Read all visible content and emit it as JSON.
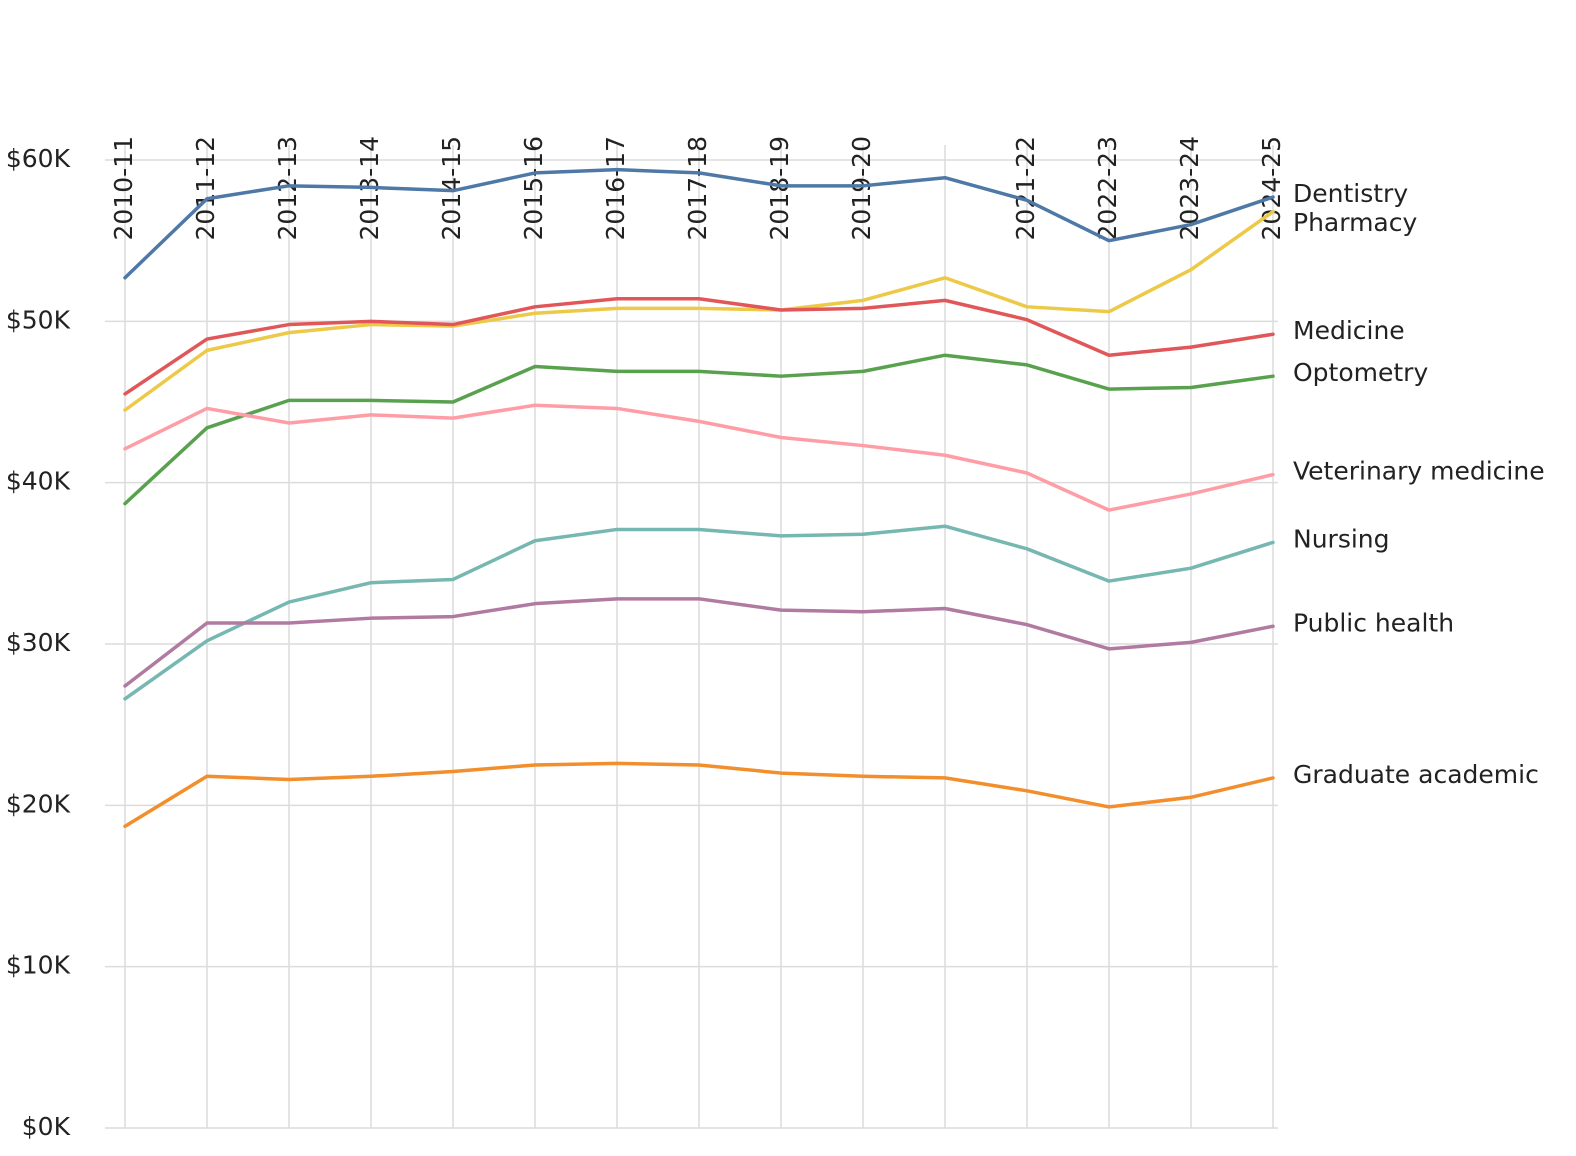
{
  "chart_data": {
    "type": "line",
    "categories": [
      "2010-11",
      "2011-12",
      "2012-13",
      "2013-14",
      "2014-15",
      "2015-16",
      "2016-17",
      "2017-18",
      "2018-19",
      "2019-20",
      null,
      "2021-22",
      "2022-23",
      "2023-24",
      "2024-25"
    ],
    "ylim": [
      0,
      60000
    ],
    "yticks": [
      {
        "value": 0,
        "label": "$0K"
      },
      {
        "value": 10000,
        "label": "$10K"
      },
      {
        "value": 20000,
        "label": "$20K"
      },
      {
        "value": 30000,
        "label": "$30K"
      },
      {
        "value": 40000,
        "label": "$40K"
      },
      {
        "value": 50000,
        "label": "$50K"
      },
      {
        "value": 60000,
        "label": "$60K"
      }
    ],
    "grid": true,
    "series": [
      {
        "name": "Dentistry",
        "color": "#4e79a7",
        "values": [
          52700,
          57600,
          58400,
          58300,
          58100,
          59200,
          59400,
          59200,
          58400,
          58400,
          58900,
          57500,
          55000,
          56000,
          57700
        ]
      },
      {
        "name": "Pharmacy",
        "color": "#edc948",
        "values": [
          44500,
          48200,
          49300,
          49800,
          49700,
          50500,
          50800,
          50800,
          50700,
          51300,
          52700,
          50900,
          50600,
          53200,
          56800
        ]
      },
      {
        "name": "Medicine",
        "color": "#e15759",
        "values": [
          45500,
          48900,
          49800,
          50000,
          49800,
          50900,
          51400,
          51400,
          50700,
          50800,
          51300,
          50100,
          47900,
          48400,
          49200
        ]
      },
      {
        "name": "Optometry",
        "color": "#59a14f",
        "values": [
          38700,
          43400,
          45100,
          45100,
          45000,
          47200,
          46900,
          46900,
          46600,
          46900,
          47900,
          47300,
          45800,
          45900,
          46600
        ]
      },
      {
        "name": "Veterinary medicine",
        "color": "#ff9da7",
        "values": [
          42100,
          44600,
          43700,
          44200,
          44000,
          44800,
          44600,
          43800,
          42800,
          42300,
          41700,
          40600,
          38300,
          39300,
          40500
        ]
      },
      {
        "name": "Nursing",
        "color": "#76b7b2",
        "values": [
          26600,
          30200,
          32600,
          33800,
          34000,
          36400,
          37100,
          37100,
          36700,
          36800,
          37300,
          35900,
          33900,
          34700,
          36300
        ]
      },
      {
        "name": "Public health",
        "color": "#b07aa1",
        "values": [
          27400,
          31300,
          31300,
          31600,
          31700,
          32500,
          32800,
          32800,
          32100,
          32000,
          32200,
          31200,
          29700,
          30100,
          31100
        ]
      },
      {
        "name": "Graduate academic",
        "color": "#f28e2b",
        "values": [
          18700,
          21800,
          21600,
          21800,
          22100,
          22500,
          22600,
          22500,
          22000,
          21800,
          21700,
          20900,
          19900,
          20500,
          21700
        ]
      }
    ]
  }
}
